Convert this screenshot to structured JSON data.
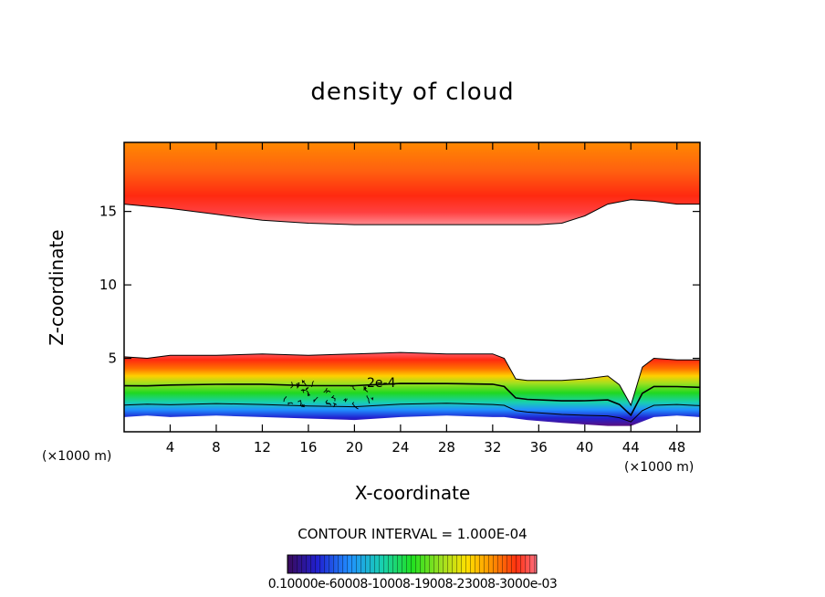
{
  "chart_data": {
    "type": "heatmap",
    "title": "density of cloud",
    "xlabel": "X-coordinate",
    "ylabel": "Z-coordinate",
    "x_unit_label": "(×1000 m)",
    "x_ticks": [
      4,
      8,
      12,
      16,
      20,
      24,
      28,
      32,
      36,
      40,
      44,
      48
    ],
    "y_ticks": [
      5,
      10,
      15
    ],
    "xlim": [
      0,
      50
    ],
    "ylim": [
      0,
      19.7
    ],
    "contour_interval_text": "CONTOUR INTERVAL = 1.000E-04",
    "contour_label": "2e-4",
    "colorbar_labels_text": "0.10000e-60008-10008-19008-23008-3000e-03",
    "colorbar_range": [
      0.0001,
      0.0003
    ],
    "colors": [
      "#3a0a5a",
      "#2020d0",
      "#2090ff",
      "#18d0b0",
      "#20e020",
      "#a0e020",
      "#ffe000",
      "#ff9000",
      "#ff3010",
      "#ff7080"
    ],
    "cloud_layers": [
      {
        "name": "upper",
        "x": [
          0,
          4,
          8,
          12,
          16,
          20,
          24,
          28,
          32,
          36,
          38,
          40,
          42,
          44,
          46,
          48,
          50
        ],
        "base": [
          15.5,
          15.2,
          14.8,
          14.4,
          14.2,
          14.1,
          14.1,
          14.1,
          14.1,
          14.1,
          14.2,
          14.7,
          15.5,
          15.8,
          15.7,
          15.5,
          15.5
        ],
        "top": 19.7
      },
      {
        "name": "lower",
        "x": [
          0,
          2,
          4,
          8,
          12,
          16,
          20,
          24,
          28,
          32,
          33,
          34,
          35,
          38,
          40,
          42,
          43,
          44,
          45,
          46,
          48,
          50
        ],
        "base": [
          1.0,
          1.1,
          1.0,
          1.1,
          1.0,
          0.9,
          0.8,
          1.0,
          1.1,
          1.0,
          1.0,
          0.9,
          0.8,
          0.6,
          0.5,
          0.4,
          0.4,
          0.4,
          0.7,
          1.0,
          1.1,
          1.0
        ],
        "top": [
          5.1,
          5.0,
          5.2,
          5.2,
          5.3,
          5.2,
          5.3,
          5.4,
          5.3,
          5.3,
          5.0,
          3.6,
          3.5,
          3.5,
          3.6,
          3.8,
          3.2,
          1.8,
          4.4,
          5.0,
          4.9,
          4.9
        ]
      }
    ]
  }
}
